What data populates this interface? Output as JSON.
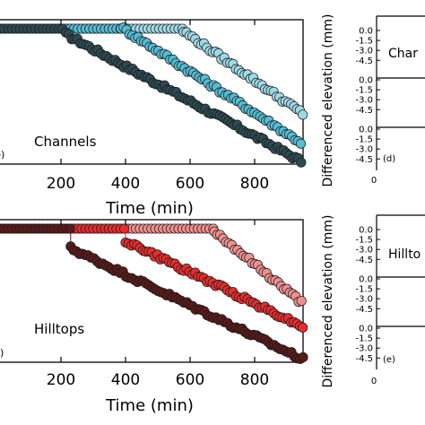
{
  "chart_data": [
    {
      "panel_id": "b",
      "panel_tag": "b)",
      "type": "scatter",
      "annotation": "Channels",
      "xlabel": "Time (min)",
      "xlim": [
        0,
        950
      ],
      "ylim": [
        0,
        1
      ],
      "xticks": [
        200,
        400,
        600,
        800
      ],
      "colors": [
        "#2d4a52",
        "#55bcd4",
        "#9fd9e6"
      ],
      "series": [
        {
          "drop": 215,
          "start": 0.9,
          "end": 0.02
        },
        {
          "drop": 385,
          "start": 0.95,
          "end": 0.15
        },
        {
          "drop": 580,
          "start": 0.92,
          "end": 0.35
        }
      ]
    },
    {
      "panel_id": "c",
      "panel_tag": "c)",
      "type": "scatter",
      "annotation": "Hilltops",
      "xlabel": "Time (min)",
      "xlim": [
        0,
        950
      ],
      "ylim": [
        0,
        1
      ],
      "xticks": [
        200,
        400,
        600,
        800
      ],
      "colors": [
        "#5a1a1a",
        "#e52d2d",
        "#f08f8f"
      ],
      "series": [
        {
          "drop": 230,
          "start": 0.8,
          "end": 0.02
        },
        {
          "drop": 400,
          "start": 0.85,
          "end": 0.25
        },
        {
          "drop": 675,
          "start": 0.92,
          "end": 0.42
        }
      ]
    },
    {
      "panel_id": "d",
      "panel_tag": "(d)",
      "type": "line",
      "annotation": "Char",
      "ylabel": "Differenced elevation (mm)",
      "yticks": [
        "0.0",
        "-1.5",
        "-3.0",
        "-4.5"
      ],
      "xtick": "0"
    },
    {
      "panel_id": "e",
      "panel_tag": "(e)",
      "type": "line",
      "annotation": "Hillto",
      "ylabel": "Differenced elevation (mm)",
      "yticks": [
        "0.0",
        "-1.5",
        "-3.0",
        "-4.5"
      ],
      "xtick": "0"
    }
  ]
}
